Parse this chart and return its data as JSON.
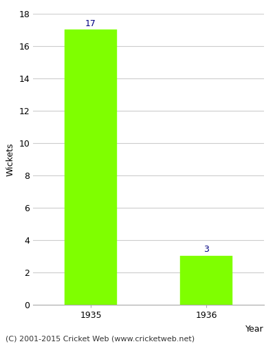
{
  "categories": [
    "1935",
    "1936"
  ],
  "values": [
    17,
    3
  ],
  "bar_color": "#7FFF00",
  "bar_edgecolor": "#7FFF00",
  "xlabel": "Year",
  "ylabel": "Wickets",
  "ylim": [
    0,
    18
  ],
  "yticks": [
    0,
    2,
    4,
    6,
    8,
    10,
    12,
    14,
    16,
    18
  ],
  "label_color": "#000080",
  "label_fontsize": 9,
  "tick_fontsize": 9,
  "footer_text": "(C) 2001-2015 Cricket Web (www.cricketweb.net)",
  "footer_fontsize": 8,
  "background_color": "#ffffff",
  "grid_color": "#cccccc"
}
